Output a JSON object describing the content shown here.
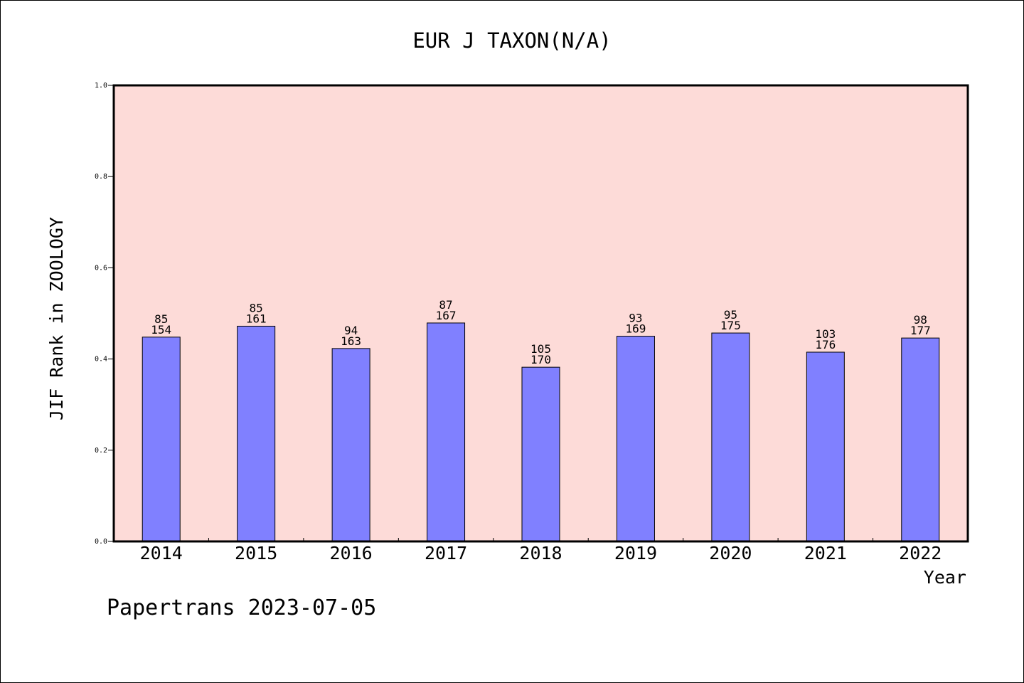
{
  "chart_data": {
    "type": "bar",
    "title": "EUR J TAXON(N/A)",
    "xlabel": "Year",
    "ylabel": "JIF Rank in ZOOLOGY",
    "ylim": [
      0,
      1.0
    ],
    "yticks": [
      "0.0",
      "0.2",
      "0.4",
      "0.6",
      "0.8",
      "1.0"
    ],
    "categories": [
      "2014",
      "2015",
      "2016",
      "2017",
      "2018",
      "2019",
      "2020",
      "2021",
      "2022"
    ],
    "values": [
      0.448,
      0.472,
      0.423,
      0.479,
      0.382,
      0.45,
      0.457,
      0.415,
      0.446
    ],
    "labels_top": [
      "85",
      "85",
      "94",
      "87",
      "105",
      "93",
      "95",
      "103",
      "98"
    ],
    "labels_bottom": [
      "154",
      "161",
      "163",
      "167",
      "170",
      "169",
      "175",
      "176",
      "177"
    ],
    "grid": false,
    "colors": {
      "plot_bg": "#fddbd8",
      "bar": "#8080ff",
      "bar_edge": "#000000"
    }
  },
  "footer": "Papertrans 2023-07-05"
}
